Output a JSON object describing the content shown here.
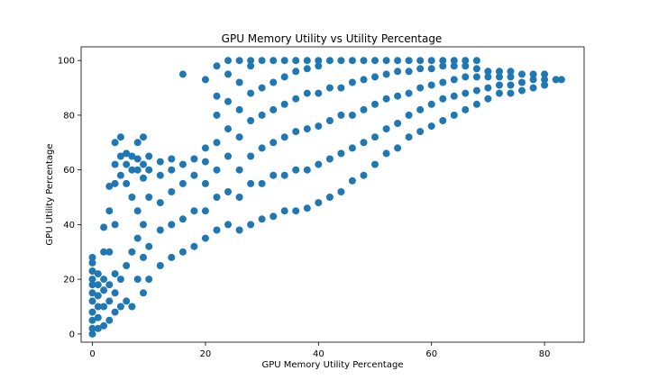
{
  "chart_data": {
    "type": "scatter",
    "title": "GPU Memory Utility vs Utility Percentage",
    "xlabel": "GPU Memory Utility Percentage",
    "ylabel": "GPU Utility Percentage",
    "xlim": [
      -2,
      87
    ],
    "ylim": [
      -3,
      105
    ],
    "xticks": [
      0,
      20,
      40,
      60,
      80
    ],
    "yticks": [
      0,
      20,
      40,
      60,
      80,
      100
    ],
    "grid": false,
    "marker_color": "#1f77b4",
    "series": [
      {
        "points": [
          [
            0,
            0
          ],
          [
            0,
            2
          ],
          [
            0,
            5
          ],
          [
            0,
            8
          ],
          [
            0,
            12
          ],
          [
            0,
            15
          ],
          [
            0,
            18
          ],
          [
            0,
            20
          ],
          [
            0,
            23
          ],
          [
            0,
            26
          ],
          [
            0,
            28
          ],
          [
            1,
            2
          ],
          [
            1,
            6
          ],
          [
            1,
            10
          ],
          [
            1,
            14
          ],
          [
            1,
            18
          ],
          [
            1,
            22
          ],
          [
            2,
            3
          ],
          [
            2,
            10
          ],
          [
            2,
            16
          ],
          [
            2,
            20
          ],
          [
            2,
            30
          ],
          [
            2,
            39
          ],
          [
            3,
            5
          ],
          [
            3,
            12
          ],
          [
            3,
            18
          ],
          [
            3,
            30
          ],
          [
            3,
            45
          ],
          [
            3,
            54
          ],
          [
            4,
            8
          ],
          [
            4,
            15
          ],
          [
            4,
            22
          ],
          [
            4,
            40
          ],
          [
            4,
            55
          ],
          [
            4,
            62
          ],
          [
            4,
            70
          ],
          [
            5,
            10
          ],
          [
            5,
            20
          ],
          [
            5,
            58
          ],
          [
            5,
            65
          ],
          [
            5,
            72
          ],
          [
            6,
            12
          ],
          [
            6,
            25
          ],
          [
            6,
            55
          ],
          [
            6,
            62
          ],
          [
            6,
            66
          ],
          [
            7,
            10
          ],
          [
            7,
            30
          ],
          [
            7,
            50
          ],
          [
            7,
            60
          ],
          [
            7,
            65
          ],
          [
            8,
            20
          ],
          [
            8,
            35
          ],
          [
            8,
            45
          ],
          [
            8,
            60
          ],
          [
            8,
            64
          ],
          [
            8,
            70
          ],
          [
            9,
            15
          ],
          [
            9,
            28
          ],
          [
            9,
            40
          ],
          [
            9,
            57
          ],
          [
            9,
            62
          ],
          [
            9,
            72
          ],
          [
            10,
            20
          ],
          [
            10,
            32
          ],
          [
            10,
            50
          ],
          [
            10,
            60
          ],
          [
            10,
            65
          ],
          [
            12,
            25
          ],
          [
            12,
            38
          ],
          [
            12,
            48
          ],
          [
            12,
            58
          ],
          [
            12,
            63
          ],
          [
            14,
            28
          ],
          [
            14,
            40
          ],
          [
            14,
            52
          ],
          [
            14,
            60
          ],
          [
            14,
            64
          ],
          [
            16,
            30
          ],
          [
            16,
            42
          ],
          [
            16,
            55
          ],
          [
            16,
            62
          ],
          [
            16,
            95
          ],
          [
            18,
            32
          ],
          [
            18,
            45
          ],
          [
            18,
            58
          ],
          [
            18,
            64
          ],
          [
            20,
            35
          ],
          [
            20,
            45
          ],
          [
            20,
            55
          ],
          [
            20,
            63
          ],
          [
            20,
            68
          ],
          [
            20,
            93
          ],
          [
            22,
            38
          ],
          [
            22,
            50
          ],
          [
            22,
            60
          ],
          [
            22,
            70
          ],
          [
            22,
            80
          ],
          [
            22,
            87
          ],
          [
            22,
            98
          ],
          [
            24,
            40
          ],
          [
            24,
            52
          ],
          [
            24,
            65
          ],
          [
            24,
            75
          ],
          [
            24,
            85
          ],
          [
            24,
            95
          ],
          [
            24,
            100
          ],
          [
            26,
            38
          ],
          [
            26,
            50
          ],
          [
            26,
            60
          ],
          [
            26,
            72
          ],
          [
            26,
            82
          ],
          [
            26,
            92
          ],
          [
            26,
            100
          ],
          [
            28,
            40
          ],
          [
            28,
            55
          ],
          [
            28,
            65
          ],
          [
            28,
            78
          ],
          [
            28,
            88
          ],
          [
            28,
            98
          ],
          [
            28,
            100
          ],
          [
            30,
            42
          ],
          [
            30,
            55
          ],
          [
            30,
            68
          ],
          [
            30,
            80
          ],
          [
            30,
            90
          ],
          [
            30,
            100
          ],
          [
            32,
            43
          ],
          [
            32,
            58
          ],
          [
            32,
            70
          ],
          [
            32,
            82
          ],
          [
            32,
            92
          ],
          [
            32,
            100
          ],
          [
            34,
            45
          ],
          [
            34,
            58
          ],
          [
            34,
            72
          ],
          [
            34,
            84
          ],
          [
            34,
            94
          ],
          [
            34,
            100
          ],
          [
            36,
            45
          ],
          [
            36,
            60
          ],
          [
            36,
            74
          ],
          [
            36,
            86
          ],
          [
            36,
            96
          ],
          [
            36,
            100
          ],
          [
            38,
            46
          ],
          [
            38,
            60
          ],
          [
            38,
            75
          ],
          [
            38,
            88
          ],
          [
            38,
            97
          ],
          [
            38,
            100
          ],
          [
            40,
            48
          ],
          [
            40,
            62
          ],
          [
            40,
            76
          ],
          [
            40,
            88
          ],
          [
            40,
            98
          ],
          [
            40,
            100
          ],
          [
            42,
            50
          ],
          [
            42,
            64
          ],
          [
            42,
            78
          ],
          [
            42,
            90
          ],
          [
            42,
            100
          ],
          [
            44,
            52
          ],
          [
            44,
            66
          ],
          [
            44,
            80
          ],
          [
            44,
            90
          ],
          [
            44,
            100
          ],
          [
            46,
            56
          ],
          [
            46,
            68
          ],
          [
            46,
            80
          ],
          [
            46,
            92
          ],
          [
            46,
            100
          ],
          [
            48,
            58
          ],
          [
            48,
            70
          ],
          [
            48,
            82
          ],
          [
            48,
            93
          ],
          [
            48,
            100
          ],
          [
            50,
            62
          ],
          [
            50,
            72
          ],
          [
            50,
            84
          ],
          [
            50,
            94
          ],
          [
            50,
            100
          ],
          [
            52,
            66
          ],
          [
            52,
            75
          ],
          [
            52,
            86
          ],
          [
            52,
            95
          ],
          [
            52,
            100
          ],
          [
            54,
            68
          ],
          [
            54,
            77
          ],
          [
            54,
            87
          ],
          [
            54,
            96
          ],
          [
            54,
            100
          ],
          [
            56,
            72
          ],
          [
            56,
            80
          ],
          [
            56,
            88
          ],
          [
            56,
            96
          ],
          [
            56,
            100
          ],
          [
            58,
            74
          ],
          [
            58,
            82
          ],
          [
            58,
            90
          ],
          [
            58,
            97
          ],
          [
            58,
            100
          ],
          [
            60,
            76
          ],
          [
            60,
            84
          ],
          [
            60,
            91
          ],
          [
            60,
            97
          ],
          [
            60,
            100
          ],
          [
            62,
            78
          ],
          [
            62,
            86
          ],
          [
            62,
            92
          ],
          [
            62,
            98
          ],
          [
            62,
            100
          ],
          [
            64,
            80
          ],
          [
            64,
            87
          ],
          [
            64,
            93
          ],
          [
            64,
            98
          ],
          [
            64,
            100
          ],
          [
            66,
            82
          ],
          [
            66,
            88
          ],
          [
            66,
            94
          ],
          [
            66,
            98
          ],
          [
            66,
            100
          ],
          [
            68,
            84
          ],
          [
            68,
            89
          ],
          [
            68,
            94
          ],
          [
            68,
            97
          ],
          [
            68,
            100
          ],
          [
            70,
            86
          ],
          [
            70,
            90
          ],
          [
            70,
            94
          ],
          [
            70,
            96
          ],
          [
            72,
            88
          ],
          [
            72,
            91
          ],
          [
            72,
            94
          ],
          [
            72,
            96
          ],
          [
            74,
            88
          ],
          [
            74,
            91
          ],
          [
            74,
            94
          ],
          [
            74,
            96
          ],
          [
            76,
            89
          ],
          [
            76,
            92
          ],
          [
            76,
            95
          ],
          [
            78,
            90
          ],
          [
            78,
            93
          ],
          [
            78,
            95
          ],
          [
            80,
            91
          ],
          [
            80,
            93
          ],
          [
            80,
            95
          ],
          [
            82,
            93
          ],
          [
            83,
            93
          ]
        ]
      }
    ]
  }
}
